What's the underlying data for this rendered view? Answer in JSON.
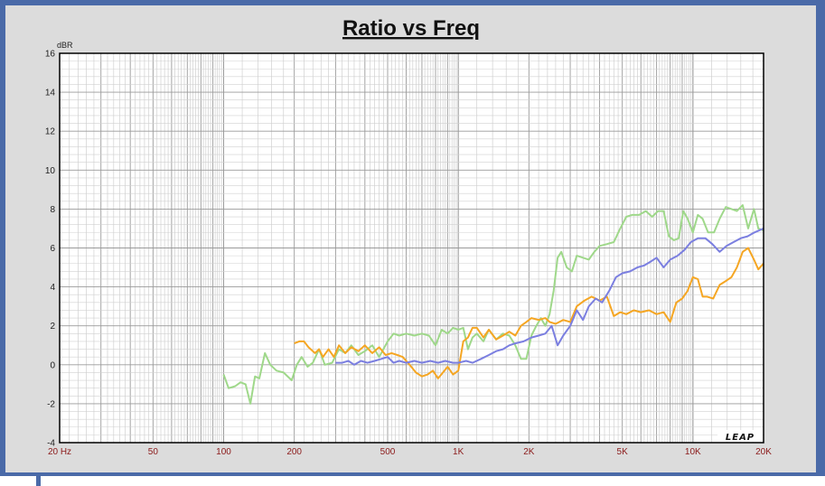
{
  "chart_data": {
    "type": "line",
    "title": "Ratio vs Freq",
    "ylabel": "dBR",
    "xlabel": "",
    "x_scale": "log",
    "xlim": [
      20,
      20000
    ],
    "ylim": [
      -4,
      16
    ],
    "grid": true,
    "y_ticks": [
      "-4",
      "-2",
      "0",
      "2",
      "4",
      "6",
      "8",
      "10",
      "12",
      "14",
      "16"
    ],
    "x_tick_labels": [
      {
        "value": 20,
        "label": "20  Hz"
      },
      {
        "value": 50,
        "label": "50"
      },
      {
        "value": 100,
        "label": "100"
      },
      {
        "value": 200,
        "label": "200"
      },
      {
        "value": 500,
        "label": "500"
      },
      {
        "value": 1000,
        "label": "1K"
      },
      {
        "value": 2000,
        "label": "2K"
      },
      {
        "value": 5000,
        "label": "5K"
      },
      {
        "value": 10000,
        "label": "10K"
      },
      {
        "value": 20000,
        "label": "20K"
      }
    ],
    "logo": "LEAP",
    "series": [
      {
        "color": "#9fd88a",
        "points": [
          [
            100,
            -0.5
          ],
          [
            105,
            -1.2
          ],
          [
            112,
            -1.1
          ],
          [
            118,
            -0.9
          ],
          [
            124,
            -1.0
          ],
          [
            130,
            -2.0
          ],
          [
            136,
            -0.6
          ],
          [
            142,
            -0.7
          ],
          [
            150,
            0.6
          ],
          [
            158,
            0.0
          ],
          [
            168,
            -0.3
          ],
          [
            180,
            -0.4
          ],
          [
            195,
            -0.8
          ],
          [
            205,
            0.0
          ],
          [
            215,
            0.4
          ],
          [
            228,
            -0.1
          ],
          [
            240,
            0.1
          ],
          [
            255,
            0.8
          ],
          [
            270,
            0.0
          ],
          [
            290,
            0.1
          ],
          [
            310,
            0.8
          ],
          [
            330,
            0.6
          ],
          [
            350,
            1.0
          ],
          [
            375,
            0.5
          ],
          [
            400,
            0.7
          ],
          [
            430,
            1.0
          ],
          [
            460,
            0.4
          ],
          [
            500,
            1.2
          ],
          [
            530,
            1.6
          ],
          [
            560,
            1.5
          ],
          [
            600,
            1.6
          ],
          [
            650,
            1.5
          ],
          [
            700,
            1.6
          ],
          [
            750,
            1.5
          ],
          [
            800,
            1.0
          ],
          [
            850,
            1.8
          ],
          [
            900,
            1.6
          ],
          [
            950,
            1.9
          ],
          [
            1000,
            1.8
          ],
          [
            1050,
            1.9
          ],
          [
            1100,
            0.8
          ],
          [
            1150,
            1.4
          ],
          [
            1200,
            1.6
          ],
          [
            1280,
            1.2
          ],
          [
            1350,
            1.8
          ],
          [
            1450,
            1.3
          ],
          [
            1550,
            1.6
          ],
          [
            1650,
            1.5
          ],
          [
            1750,
            1.0
          ],
          [
            1850,
            0.3
          ],
          [
            1950,
            0.3
          ],
          [
            2050,
            1.5
          ],
          [
            2150,
            2.0
          ],
          [
            2250,
            2.4
          ],
          [
            2350,
            2.0
          ],
          [
            2450,
            2.6
          ],
          [
            2550,
            3.8
          ],
          [
            2650,
            5.5
          ],
          [
            2750,
            5.8
          ],
          [
            2900,
            5.0
          ],
          [
            3050,
            4.8
          ],
          [
            3200,
            5.6
          ],
          [
            3400,
            5.5
          ],
          [
            3600,
            5.4
          ],
          [
            3800,
            5.8
          ],
          [
            4000,
            6.1
          ],
          [
            4300,
            6.2
          ],
          [
            4600,
            6.3
          ],
          [
            4900,
            7.0
          ],
          [
            5200,
            7.6
          ],
          [
            5500,
            7.7
          ],
          [
            5900,
            7.7
          ],
          [
            6300,
            7.9
          ],
          [
            6700,
            7.6
          ],
          [
            7100,
            7.9
          ],
          [
            7500,
            7.9
          ],
          [
            7900,
            6.6
          ],
          [
            8300,
            6.4
          ],
          [
            8700,
            6.5
          ],
          [
            9100,
            7.9
          ],
          [
            9500,
            7.5
          ],
          [
            10000,
            6.8
          ],
          [
            10500,
            7.7
          ],
          [
            11000,
            7.5
          ],
          [
            11600,
            6.8
          ],
          [
            12300,
            6.8
          ],
          [
            13000,
            7.5
          ],
          [
            13800,
            8.1
          ],
          [
            14600,
            8.0
          ],
          [
            15400,
            7.9
          ],
          [
            16300,
            8.2
          ],
          [
            17200,
            7.0
          ],
          [
            18200,
            8.0
          ],
          [
            19000,
            7.0
          ],
          [
            20000,
            6.9
          ]
        ]
      },
      {
        "color": "#f5a623",
        "points": [
          [
            200,
            1.1
          ],
          [
            210,
            1.2
          ],
          [
            220,
            1.2
          ],
          [
            230,
            0.9
          ],
          [
            245,
            0.6
          ],
          [
            255,
            0.8
          ],
          [
            265,
            0.4
          ],
          [
            280,
            0.8
          ],
          [
            295,
            0.4
          ],
          [
            310,
            1.0
          ],
          [
            330,
            0.6
          ],
          [
            350,
            0.9
          ],
          [
            375,
            0.7
          ],
          [
            400,
            1.0
          ],
          [
            430,
            0.6
          ],
          [
            460,
            0.9
          ],
          [
            490,
            0.5
          ],
          [
            520,
            0.6
          ],
          [
            550,
            0.5
          ],
          [
            580,
            0.4
          ],
          [
            620,
            0.0
          ],
          [
            660,
            -0.4
          ],
          [
            700,
            -0.6
          ],
          [
            740,
            -0.5
          ],
          [
            780,
            -0.3
          ],
          [
            820,
            -0.7
          ],
          [
            860,
            -0.4
          ],
          [
            900,
            -0.1
          ],
          [
            950,
            -0.5
          ],
          [
            1000,
            -0.3
          ],
          [
            1050,
            1.2
          ],
          [
            1100,
            1.4
          ],
          [
            1150,
            1.9
          ],
          [
            1200,
            1.9
          ],
          [
            1280,
            1.4
          ],
          [
            1350,
            1.8
          ],
          [
            1450,
            1.3
          ],
          [
            1550,
            1.5
          ],
          [
            1650,
            1.7
          ],
          [
            1750,
            1.5
          ],
          [
            1850,
            2.0
          ],
          [
            1950,
            2.2
          ],
          [
            2050,
            2.4
          ],
          [
            2200,
            2.3
          ],
          [
            2350,
            2.4
          ],
          [
            2450,
            2.2
          ],
          [
            2600,
            2.1
          ],
          [
            2800,
            2.3
          ],
          [
            3000,
            2.2
          ],
          [
            3200,
            3.0
          ],
          [
            3450,
            3.3
          ],
          [
            3700,
            3.5
          ],
          [
            4000,
            3.3
          ],
          [
            4300,
            3.5
          ],
          [
            4600,
            2.5
          ],
          [
            4900,
            2.7
          ],
          [
            5200,
            2.6
          ],
          [
            5600,
            2.8
          ],
          [
            6000,
            2.7
          ],
          [
            6500,
            2.8
          ],
          [
            7000,
            2.6
          ],
          [
            7500,
            2.7
          ],
          [
            8000,
            2.2
          ],
          [
            8500,
            3.2
          ],
          [
            9000,
            3.4
          ],
          [
            9500,
            3.8
          ],
          [
            10000,
            4.5
          ],
          [
            10500,
            4.4
          ],
          [
            11000,
            3.5
          ],
          [
            11500,
            3.5
          ],
          [
            12200,
            3.4
          ],
          [
            13000,
            4.1
          ],
          [
            13800,
            4.3
          ],
          [
            14600,
            4.5
          ],
          [
            15400,
            5.0
          ],
          [
            16300,
            5.8
          ],
          [
            17200,
            6.0
          ],
          [
            18200,
            5.4
          ],
          [
            19000,
            4.9
          ],
          [
            20000,
            5.2
          ]
        ]
      },
      {
        "color": "#7b7fe0",
        "points": [
          [
            300,
            0.1
          ],
          [
            320,
            0.1
          ],
          [
            340,
            0.2
          ],
          [
            360,
            0.0
          ],
          [
            385,
            0.2
          ],
          [
            410,
            0.1
          ],
          [
            440,
            0.2
          ],
          [
            470,
            0.3
          ],
          [
            500,
            0.4
          ],
          [
            530,
            0.1
          ],
          [
            560,
            0.2
          ],
          [
            600,
            0.1
          ],
          [
            650,
            0.2
          ],
          [
            700,
            0.1
          ],
          [
            760,
            0.2
          ],
          [
            820,
            0.1
          ],
          [
            880,
            0.2
          ],
          [
            950,
            0.1
          ],
          [
            1000,
            0.1
          ],
          [
            1080,
            0.2
          ],
          [
            1150,
            0.1
          ],
          [
            1250,
            0.3
          ],
          [
            1350,
            0.5
          ],
          [
            1450,
            0.7
          ],
          [
            1550,
            0.8
          ],
          [
            1650,
            1.0
          ],
          [
            1750,
            1.1
          ],
          [
            1900,
            1.2
          ],
          [
            2050,
            1.4
          ],
          [
            2200,
            1.5
          ],
          [
            2350,
            1.6
          ],
          [
            2500,
            2.0
          ],
          [
            2650,
            1.0
          ],
          [
            2800,
            1.5
          ],
          [
            3000,
            2.0
          ],
          [
            3200,
            2.8
          ],
          [
            3400,
            2.3
          ],
          [
            3600,
            3.0
          ],
          [
            3850,
            3.4
          ],
          [
            4100,
            3.2
          ],
          [
            4400,
            3.8
          ],
          [
            4700,
            4.5
          ],
          [
            5000,
            4.7
          ],
          [
            5400,
            4.8
          ],
          [
            5800,
            5.0
          ],
          [
            6200,
            5.1
          ],
          [
            6600,
            5.3
          ],
          [
            7000,
            5.5
          ],
          [
            7500,
            5.0
          ],
          [
            8000,
            5.4
          ],
          [
            8600,
            5.6
          ],
          [
            9200,
            5.9
          ],
          [
            9800,
            6.3
          ],
          [
            10500,
            6.5
          ],
          [
            11300,
            6.5
          ],
          [
            12100,
            6.2
          ],
          [
            13000,
            5.8
          ],
          [
            13900,
            6.1
          ],
          [
            14900,
            6.3
          ],
          [
            16000,
            6.5
          ],
          [
            17100,
            6.6
          ],
          [
            18300,
            6.8
          ],
          [
            20000,
            7.0
          ]
        ]
      }
    ]
  }
}
